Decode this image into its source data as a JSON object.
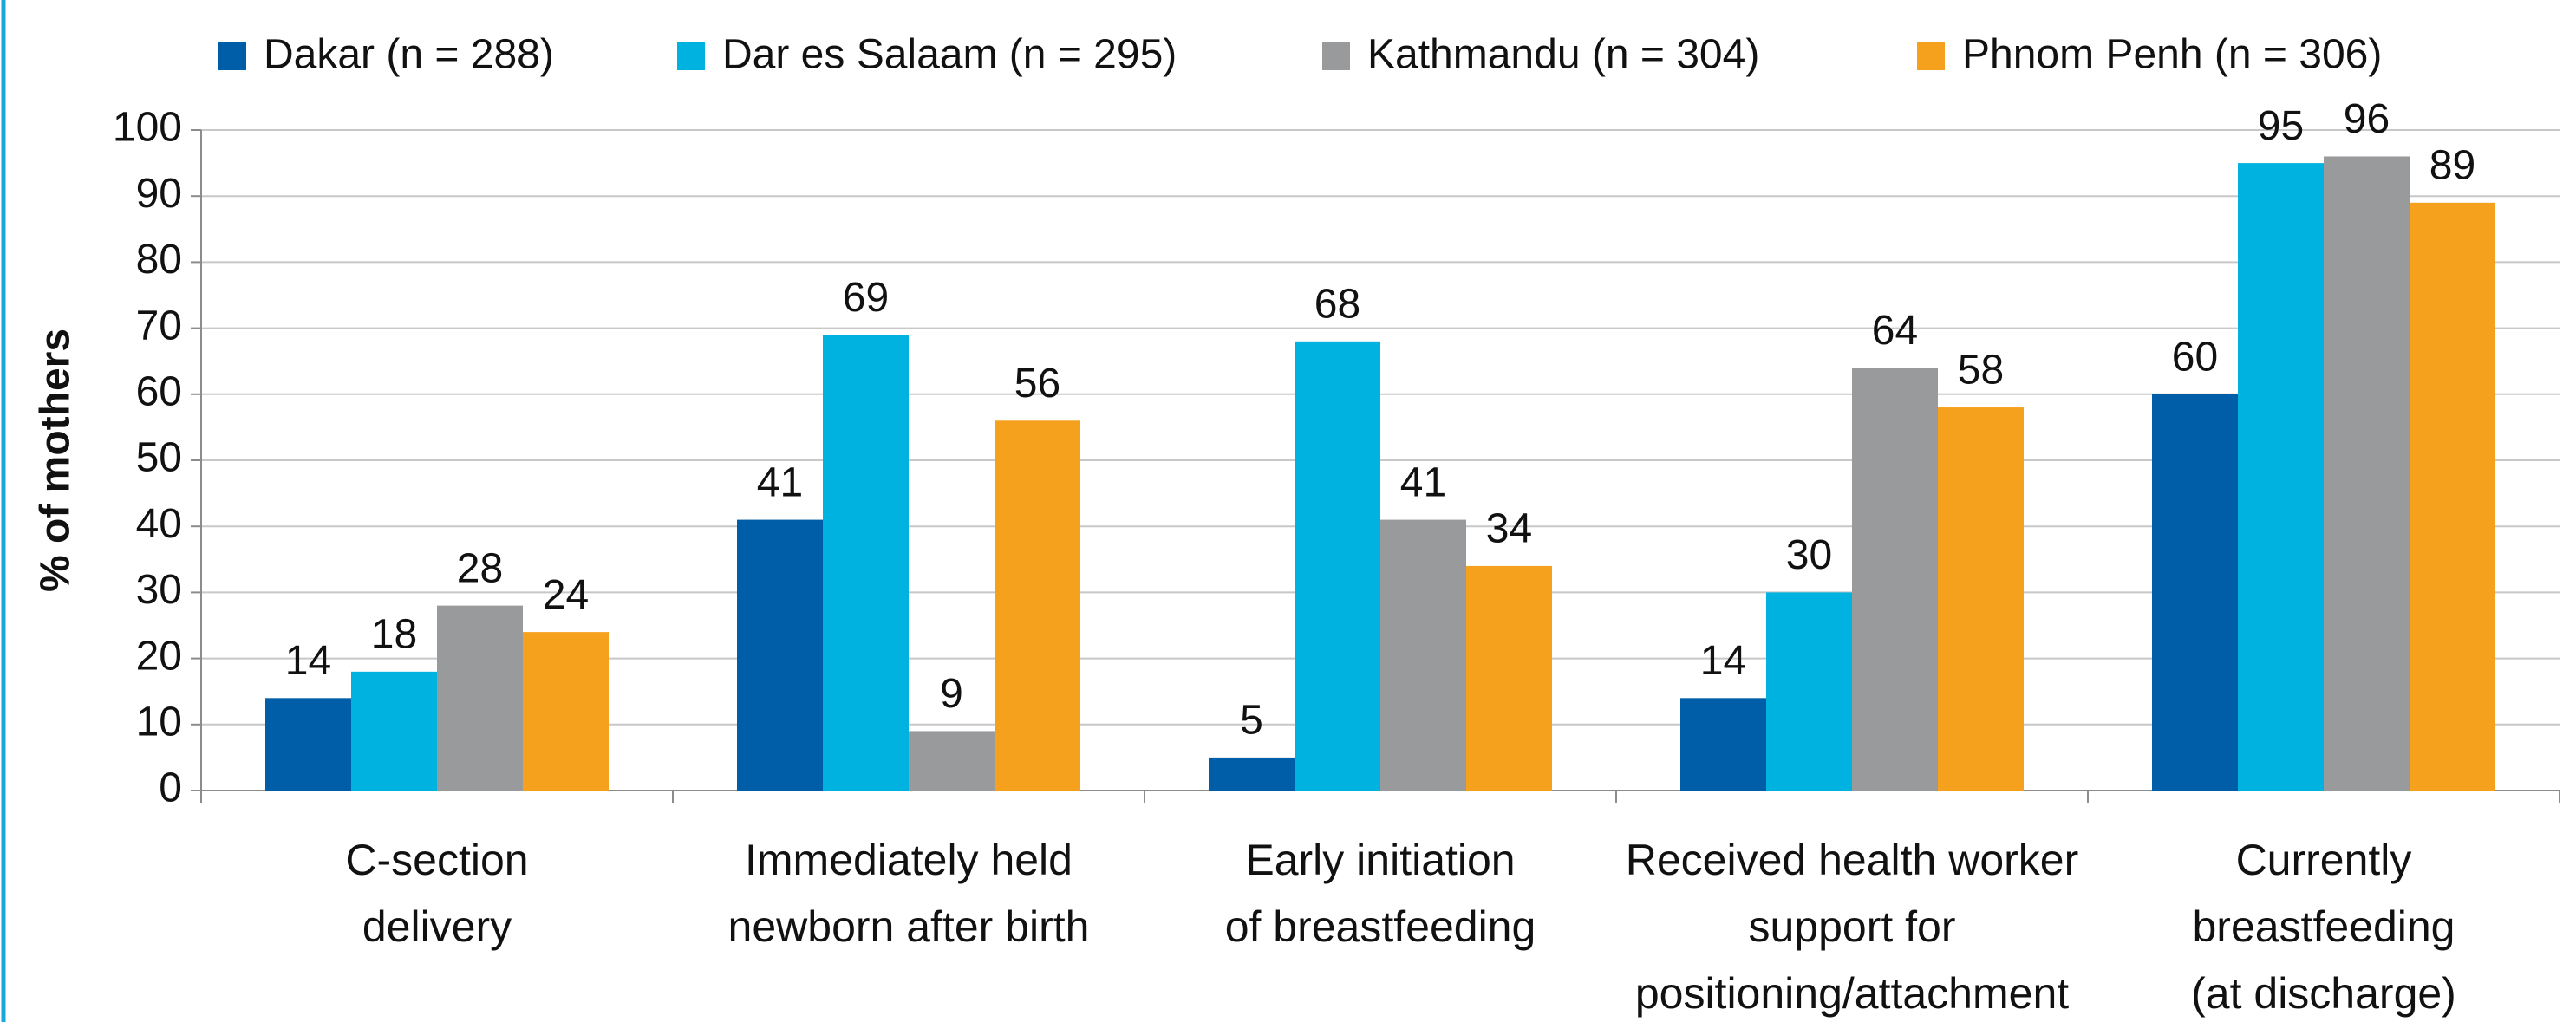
{
  "chart_data": {
    "type": "bar",
    "y_label": "% of mothers",
    "categories": [
      [
        "C-section",
        "delivery"
      ],
      [
        "Immediately held",
        "newborn after birth"
      ],
      [
        "Early initiation",
        "of breastfeeding"
      ],
      [
        "Received health worker",
        "support for",
        "positioning/attachment"
      ],
      [
        "Currently",
        "breastfeeding",
        "(at discharge)"
      ]
    ],
    "series": [
      {
        "name": "Dakar (n = 288)",
        "color": "#005ea8",
        "values": [
          14,
          41,
          5,
          14,
          60
        ]
      },
      {
        "name": "Dar es Salaam (n = 295)",
        "color": "#00b2df",
        "values": [
          18,
          69,
          68,
          30,
          95
        ]
      },
      {
        "name": "Kathmandu (n = 304)",
        "color": "#999a9c",
        "values": [
          28,
          9,
          41,
          64,
          96
        ]
      },
      {
        "name": "Phnom Penh (n = 306)",
        "color": "#f5a11e",
        "values": [
          24,
          56,
          34,
          58,
          89
        ]
      }
    ],
    "ylim": [
      0,
      100
    ],
    "yticks": [
      0,
      10,
      20,
      30,
      40,
      50,
      60,
      70,
      80,
      90,
      100
    ],
    "grid": true,
    "legend": "top"
  }
}
